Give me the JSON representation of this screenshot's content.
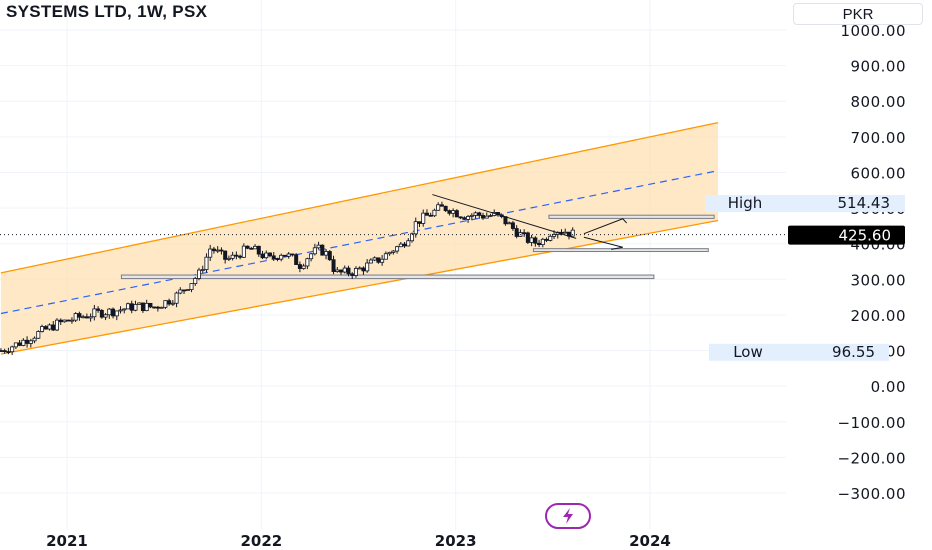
{
  "header": {
    "title": "SYSTEMS LTD, 1W, PSX",
    "currency": "PKR"
  },
  "chart_data": {
    "type": "candlestick",
    "title": "SYSTEMS LTD, 1W, PSX",
    "y_axis": {
      "ticks": [
        1000,
        900,
        800,
        700,
        600,
        500,
        400,
        300,
        200,
        100,
        0,
        -100,
        -200,
        -300
      ],
      "tick_labels": [
        "1000.00",
        "900.00",
        "800.00",
        "700.00",
        "600.00",
        "500.00",
        "400.00",
        "300.00",
        "200.00",
        "100.00",
        "0.00",
        "−100.00",
        "−200.00",
        "−300.00"
      ],
      "ylim": [
        -330,
        1030
      ]
    },
    "x_axis": {
      "tick_labels": [
        "2021",
        "2022",
        "2023",
        "2024"
      ],
      "ticks": [
        2021.0,
        2022.0,
        2023.0,
        2024.0
      ],
      "xlim": [
        2020.66,
        2024.7
      ]
    },
    "price_series": [
      [
        2020.66,
        100
      ],
      [
        2020.75,
        120
      ],
      [
        2020.85,
        148
      ],
      [
        2020.95,
        175
      ],
      [
        2021.05,
        192
      ],
      [
        2021.15,
        205
      ],
      [
        2021.25,
        212
      ],
      [
        2021.35,
        225
      ],
      [
        2021.45,
        222
      ],
      [
        2021.55,
        248
      ],
      [
        2021.62,
        282
      ],
      [
        2021.68,
        315
      ],
      [
        2021.72,
        365
      ],
      [
        2021.74,
        390
      ],
      [
        2021.78,
        372
      ],
      [
        2021.82,
        355
      ],
      [
        2021.86,
        362
      ],
      [
        2021.9,
        378
      ],
      [
        2021.95,
        385
      ],
      [
        2022.0,
        370
      ],
      [
        2022.05,
        355
      ],
      [
        2022.1,
        375
      ],
      [
        2022.15,
        362
      ],
      [
        2022.2,
        340
      ],
      [
        2022.25,
        370
      ],
      [
        2022.3,
        385
      ],
      [
        2022.35,
        365
      ],
      [
        2022.38,
        318
      ],
      [
        2022.42,
        318
      ],
      [
        2022.48,
        322
      ],
      [
        2022.55,
        340
      ],
      [
        2022.62,
        360
      ],
      [
        2022.68,
        385
      ],
      [
        2022.72,
        395
      ],
      [
        2022.76,
        425
      ],
      [
        2022.8,
        462
      ],
      [
        2022.86,
        480
      ],
      [
        2022.92,
        500
      ],
      [
        2022.96,
        500
      ],
      [
        2023.0,
        488
      ],
      [
        2023.05,
        478
      ],
      [
        2023.1,
        482
      ],
      [
        2023.15,
        478
      ],
      [
        2023.2,
        480
      ],
      [
        2023.25,
        465
      ],
      [
        2023.3,
        440
      ],
      [
        2023.35,
        418
      ],
      [
        2023.4,
        402
      ],
      [
        2023.45,
        410
      ],
      [
        2023.5,
        440
      ],
      [
        2023.55,
        438
      ],
      [
        2023.6,
        428
      ],
      [
        2023.62,
        426
      ]
    ],
    "last_price": 425.6,
    "last_price_label": "425.60",
    "high": {
      "label": "High",
      "value": 514.43,
      "value_label": "514.43"
    },
    "low": {
      "label": "Low",
      "value": 96.55,
      "value_label": "96.55"
    },
    "channel": {
      "lower": [
        [
          2020.66,
          90
        ],
        [
          2024.35,
          465
        ]
      ],
      "upper": [
        [
          2020.66,
          318
        ],
        [
          2024.35,
          740
        ]
      ],
      "mid": [
        [
          2020.66,
          204
        ],
        [
          2024.35,
          605
        ]
      ]
    },
    "trendline": [
      [
        2022.88,
        538
      ],
      [
        2023.62,
        415
      ]
    ],
    "zones": [
      {
        "x0": 2021.28,
        "x1": 2024.02,
        "y0": 302,
        "y1": 312
      },
      {
        "x0": 2023.4,
        "x1": 2024.3,
        "y0": 378,
        "y1": 386
      },
      {
        "x0": 2023.48,
        "x1": 2024.33,
        "y0": 471,
        "y1": 480
      }
    ],
    "projections": [
      [
        [
          2023.66,
          428
        ],
        [
          2023.86,
          470
        ],
        [
          2023.88,
          458
        ]
      ],
      [
        [
          2023.66,
          418
        ],
        [
          2023.86,
          390
        ],
        [
          2023.8,
          384
        ]
      ]
    ],
    "colors": {
      "channel_line": "#ff9800",
      "channel_fill": "#ffe0b2",
      "mid_line": "#2962ff",
      "candle": "#131722",
      "price_dots": "#131722",
      "last_price_bg": "#000000",
      "label_bg": "#e3effd",
      "logo": "#9c27b0"
    },
    "grid": true
  }
}
